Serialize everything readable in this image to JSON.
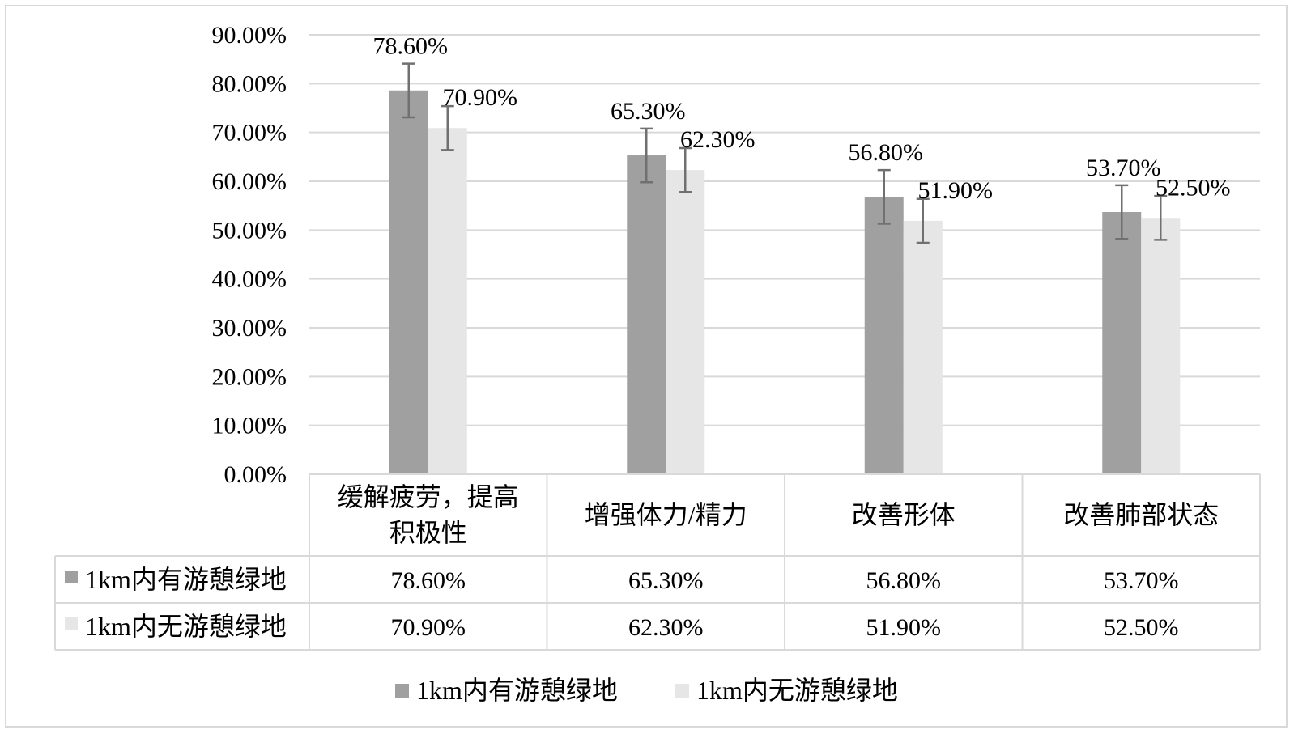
{
  "chart_data": {
    "type": "bar",
    "title": "",
    "xlabel": "",
    "ylabel": "",
    "ylim": [
      0,
      90
    ],
    "y_tick_step": 10,
    "y_tick_format": "percent_2dp",
    "grid": true,
    "error_bars": true,
    "data_table": true,
    "legend_position": "bottom",
    "categories": [
      "缓解疲劳，提高积极性",
      "增强体力/精力",
      "改善形体",
      "改善肺部状态"
    ],
    "category_label_lines": [
      [
        "缓解疲劳，提高",
        "积极性"
      ],
      [
        "增强体力/精力"
      ],
      [
        "改善形体"
      ],
      [
        "改善肺部状态"
      ]
    ],
    "series": [
      {
        "name": "1km内有游憩绿地",
        "color": "#a0a0a0",
        "values": [
          78.6,
          65.3,
          56.8,
          53.7
        ],
        "labels": [
          "78.60%",
          "65.30%",
          "56.80%",
          "53.70%"
        ],
        "error_low": [
          73.1,
          59.8,
          51.3,
          48.2
        ],
        "error_high": [
          84.1,
          70.8,
          62.3,
          59.2
        ]
      },
      {
        "name": "1km内无游憩绿地",
        "color": "#e6e6e6",
        "values": [
          70.9,
          62.3,
          51.9,
          52.5
        ],
        "labels": [
          "70.90%",
          "62.30%",
          "51.90%",
          "52.50%"
        ],
        "error_low": [
          66.4,
          57.8,
          47.4,
          48.0
        ],
        "error_high": [
          75.4,
          66.8,
          56.4,
          57.0
        ]
      }
    ]
  }
}
